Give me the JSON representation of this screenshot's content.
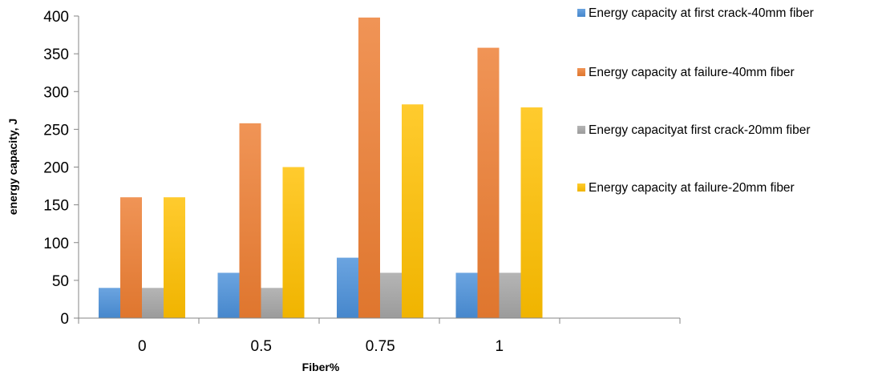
{
  "chart_data": {
    "type": "bar",
    "xlabel": "Fiber%",
    "ylabel": "energy capacity, J",
    "categories": [
      "0",
      "0.5",
      "0.75",
      "1"
    ],
    "ylim": [
      0,
      400
    ],
    "yticks": [
      0,
      50,
      100,
      150,
      200,
      250,
      300,
      350,
      400
    ],
    "grid": false,
    "legend_position": "right",
    "series": [
      {
        "name": "Energy capacity at first crack-40mm fiber",
        "color": "#4a90d9",
        "values": [
          40,
          60,
          80,
          60
        ]
      },
      {
        "name": "Energy capacity at failure-40mm fiber",
        "color": "#ed7d31",
        "values": [
          160,
          258,
          398,
          358
        ]
      },
      {
        "name": "Energy capacityat first crack-20mm fiber",
        "color": "#a5a5a5",
        "values": [
          40,
          40,
          60,
          60
        ]
      },
      {
        "name": "Energy capacity at failure-20mm fiber",
        "color": "#ffc000",
        "values": [
          160,
          200,
          283,
          279
        ]
      }
    ]
  }
}
